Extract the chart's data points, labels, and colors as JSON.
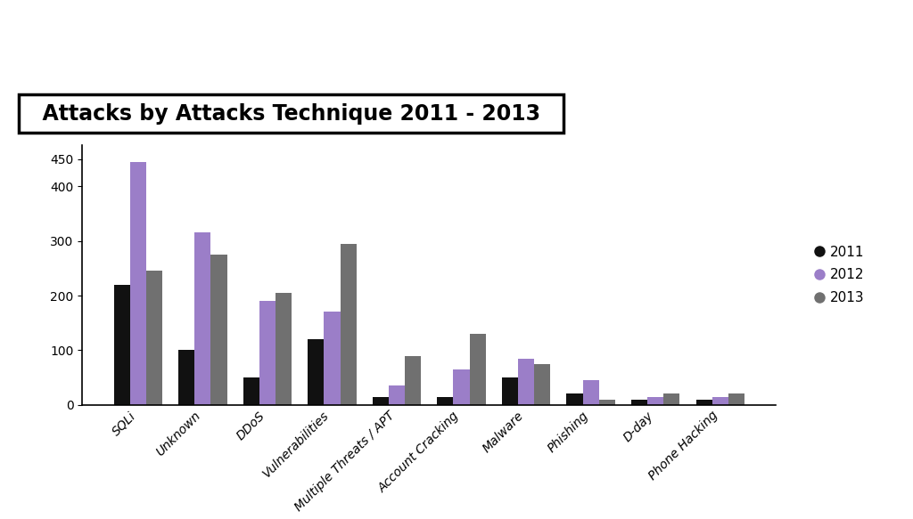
{
  "title": "Attacks by Attacks Technique 2011 - 2013",
  "categories": [
    "SQLi",
    "Unknown",
    "DDoS",
    "Vulnerabilities",
    "Multiple Threats / APT",
    "Account Cracking",
    "Malware",
    "Phishing",
    "D-day",
    "Phone Hacking"
  ],
  "series": {
    "2011": [
      220,
      100,
      50,
      120,
      15,
      15,
      50,
      20,
      10,
      10
    ],
    "2012": [
      445,
      315,
      190,
      170,
      35,
      65,
      85,
      45,
      15,
      15
    ],
    "2013": [
      245,
      275,
      205,
      295,
      90,
      130,
      75,
      10,
      20,
      20
    ]
  },
  "colors": {
    "2011": "#111111",
    "2012": "#9b7ec8",
    "2013": "#707070"
  },
  "ylim": [
    0,
    475
  ],
  "yticks": [
    0,
    100,
    200,
    300,
    400,
    450
  ],
  "background_color": "#ffffff",
  "bar_width": 0.25,
  "title_fontsize": 17,
  "axis_fontsize": 10,
  "legend_fontsize": 11
}
